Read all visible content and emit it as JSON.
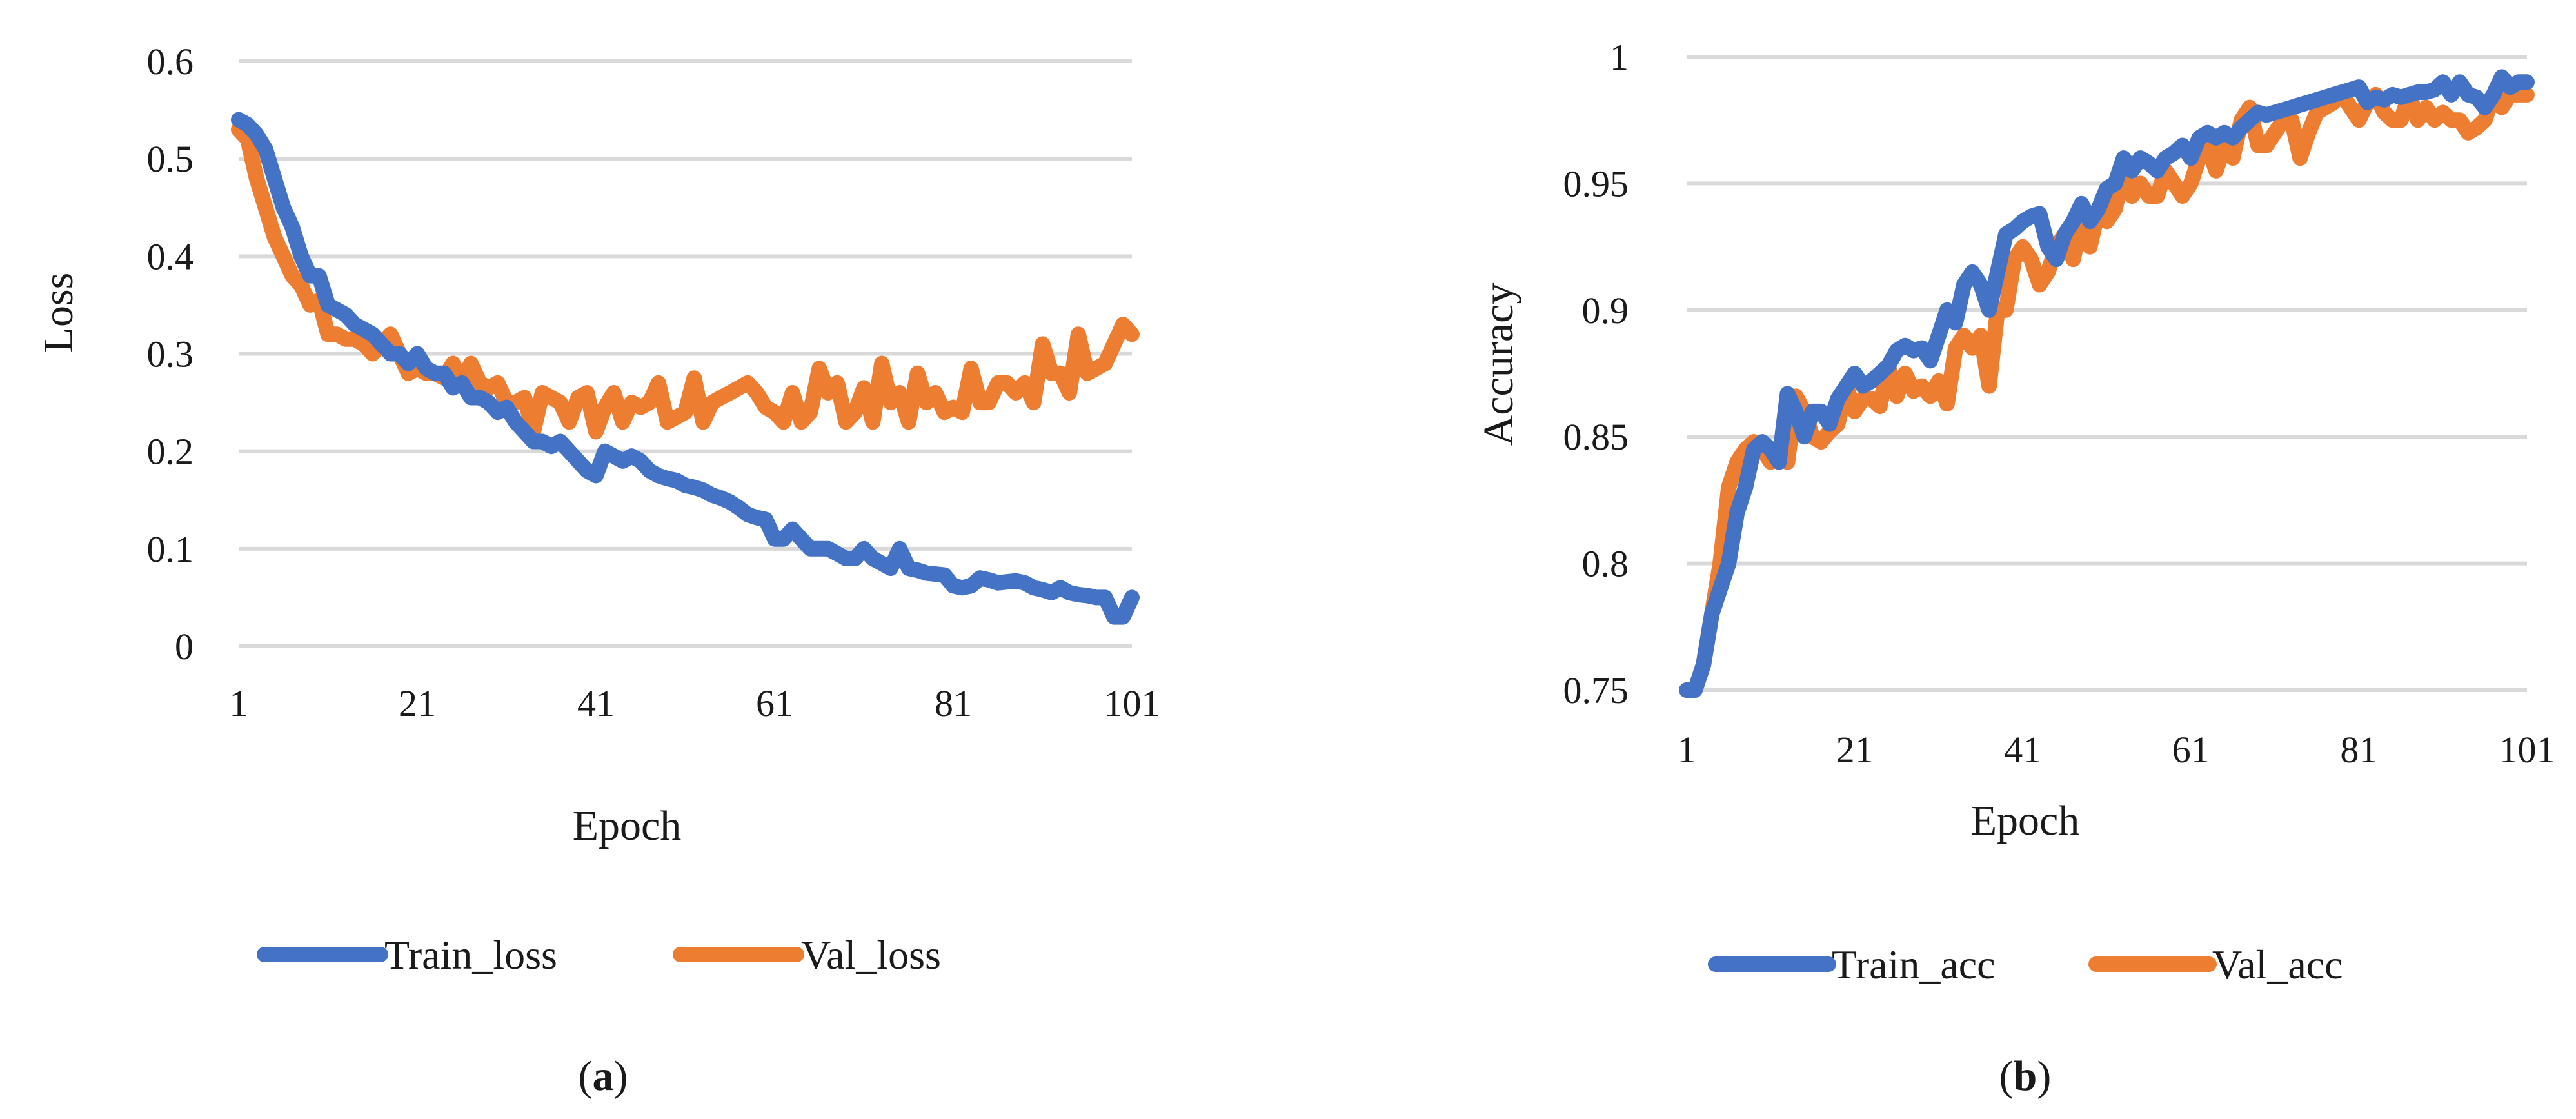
{
  "figure": {
    "captions": [
      {
        "open": "(",
        "letter": "a",
        "close": ")"
      },
      {
        "open": "(",
        "letter": "b",
        "close": ")"
      }
    ]
  },
  "chart_data": [
    {
      "type": "line",
      "ylabel": "Loss",
      "xlabel": "Epoch",
      "x_ticks": [
        1,
        21,
        41,
        61,
        81,
        101
      ],
      "y_ticks": [
        0,
        0.1,
        0.2,
        0.3,
        0.4,
        0.5,
        0.6
      ],
      "y_tick_labels": [
        "0",
        "0.1",
        "0.2",
        "0.3",
        "0.4",
        "0.5",
        "0.6"
      ],
      "xlim": [
        1,
        101
      ],
      "ylim": [
        0,
        0.6
      ],
      "grid": true,
      "legend_position": "bottom",
      "series": [
        {
          "name": "Train_loss",
          "color": "#4472C4",
          "x": [
            1,
            2,
            3,
            4,
            5,
            6,
            7,
            8,
            9,
            10,
            11,
            12,
            13,
            14,
            15,
            16,
            17,
            18,
            19,
            20,
            21,
            22,
            23,
            24,
            25,
            26,
            27,
            28,
            29,
            30,
            31,
            32,
            33,
            34,
            35,
            36,
            37,
            38,
            39,
            40,
            41,
            42,
            43,
            44,
            45,
            46,
            47,
            48,
            49,
            50,
            51,
            52,
            53,
            54,
            55,
            56,
            57,
            58,
            59,
            60,
            61,
            62,
            63,
            64,
            65,
            66,
            67,
            68,
            69,
            70,
            71,
            72,
            73,
            74,
            75,
            76,
            77,
            78,
            79,
            80,
            81,
            82,
            83,
            84,
            85,
            86,
            87,
            88,
            89,
            90,
            91,
            92,
            93,
            94,
            95,
            96,
            97,
            98,
            99,
            100,
            101
          ],
          "values": [
            0.54,
            0.535,
            0.525,
            0.51,
            0.48,
            0.45,
            0.43,
            0.4,
            0.38,
            0.38,
            0.35,
            0.345,
            0.34,
            0.33,
            0.325,
            0.32,
            0.31,
            0.3,
            0.3,
            0.29,
            0.3,
            0.285,
            0.28,
            0.28,
            0.265,
            0.27,
            0.255,
            0.255,
            0.25,
            0.24,
            0.245,
            0.23,
            0.22,
            0.21,
            0.21,
            0.205,
            0.21,
            0.2,
            0.19,
            0.18,
            0.175,
            0.2,
            0.195,
            0.19,
            0.195,
            0.19,
            0.18,
            0.175,
            0.172,
            0.17,
            0.165,
            0.163,
            0.16,
            0.155,
            0.152,
            0.148,
            0.142,
            0.135,
            0.132,
            0.13,
            0.11,
            0.11,
            0.12,
            0.11,
            0.1,
            0.1,
            0.1,
            0.095,
            0.09,
            0.09,
            0.1,
            0.09,
            0.085,
            0.08,
            0.1,
            0.08,
            0.078,
            0.075,
            0.074,
            0.073,
            0.062,
            0.06,
            0.062,
            0.07,
            0.068,
            0.065,
            0.066,
            0.067,
            0.065,
            0.06,
            0.058,
            0.055,
            0.06,
            0.055,
            0.053,
            0.052,
            0.05,
            0.05,
            0.03,
            0.03,
            0.05
          ]
        },
        {
          "name": "Val_loss",
          "color": "#ED7D31",
          "x": [
            1,
            2,
            3,
            4,
            5,
            6,
            7,
            8,
            9,
            10,
            11,
            12,
            13,
            14,
            15,
            16,
            17,
            18,
            19,
            20,
            21,
            22,
            23,
            24,
            25,
            26,
            27,
            28,
            29,
            30,
            31,
            32,
            33,
            34,
            35,
            36,
            37,
            38,
            39,
            40,
            41,
            42,
            43,
            44,
            45,
            46,
            47,
            48,
            49,
            50,
            51,
            52,
            53,
            54,
            55,
            56,
            57,
            58,
            59,
            60,
            61,
            62,
            63,
            64,
            65,
            66,
            67,
            68,
            69,
            70,
            71,
            72,
            73,
            74,
            75,
            76,
            77,
            78,
            79,
            80,
            81,
            82,
            83,
            84,
            85,
            86,
            87,
            88,
            89,
            90,
            91,
            92,
            93,
            94,
            95,
            96,
            97,
            98,
            99,
            100,
            101
          ],
          "values": [
            0.53,
            0.52,
            0.48,
            0.45,
            0.42,
            0.4,
            0.38,
            0.37,
            0.35,
            0.355,
            0.32,
            0.32,
            0.315,
            0.315,
            0.31,
            0.3,
            0.31,
            0.32,
            0.3,
            0.28,
            0.285,
            0.28,
            0.28,
            0.275,
            0.29,
            0.27,
            0.29,
            0.27,
            0.265,
            0.27,
            0.25,
            0.25,
            0.255,
            0.22,
            0.26,
            0.255,
            0.25,
            0.23,
            0.255,
            0.26,
            0.22,
            0.245,
            0.26,
            0.23,
            0.25,
            0.245,
            0.25,
            0.27,
            0.23,
            0.235,
            0.24,
            0.275,
            0.23,
            0.25,
            0.255,
            0.26,
            0.265,
            0.27,
            0.26,
            0.245,
            0.24,
            0.23,
            0.26,
            0.23,
            0.24,
            0.285,
            0.26,
            0.27,
            0.23,
            0.24,
            0.265,
            0.23,
            0.29,
            0.25,
            0.26,
            0.23,
            0.28,
            0.25,
            0.26,
            0.24,
            0.245,
            0.24,
            0.285,
            0.25,
            0.25,
            0.27,
            0.27,
            0.26,
            0.27,
            0.25,
            0.31,
            0.28,
            0.28,
            0.26,
            0.32,
            0.28,
            0.285,
            0.29,
            0.31,
            0.33,
            0.32
          ]
        }
      ]
    },
    {
      "type": "line",
      "ylabel": "Accuracy",
      "xlabel": "Epoch",
      "x_ticks": [
        1,
        21,
        41,
        61,
        81,
        101
      ],
      "y_ticks": [
        0.75,
        0.8,
        0.85,
        0.9,
        0.95,
        1
      ],
      "y_tick_labels": [
        "0.75",
        "0.8",
        "0.85",
        "0.9",
        "0.95",
        "1"
      ],
      "xlim": [
        1,
        101
      ],
      "ylim": [
        0.75,
        1
      ],
      "grid": true,
      "legend_position": "bottom",
      "series": [
        {
          "name": "Train_acc",
          "color": "#4472C4",
          "x": [
            1,
            2,
            3,
            4,
            5,
            6,
            7,
            8,
            9,
            10,
            11,
            12,
            13,
            14,
            15,
            16,
            17,
            18,
            19,
            20,
            21,
            22,
            23,
            24,
            25,
            26,
            27,
            28,
            29,
            30,
            31,
            32,
            33,
            34,
            35,
            36,
            37,
            38,
            39,
            40,
            41,
            42,
            43,
            44,
            45,
            46,
            47,
            48,
            49,
            50,
            51,
            52,
            53,
            54,
            55,
            56,
            57,
            58,
            59,
            60,
            61,
            62,
            63,
            64,
            65,
            66,
            67,
            68,
            69,
            70,
            71,
            72,
            73,
            74,
            75,
            76,
            77,
            78,
            79,
            80,
            81,
            82,
            83,
            84,
            85,
            86,
            87,
            88,
            89,
            90,
            91,
            92,
            93,
            94,
            95,
            96,
            97,
            98,
            99,
            100,
            101
          ],
          "values": [
            0.75,
            0.75,
            0.76,
            0.78,
            0.79,
            0.8,
            0.82,
            0.83,
            0.845,
            0.848,
            0.845,
            0.84,
            0.867,
            0.86,
            0.85,
            0.86,
            0.86,
            0.855,
            0.865,
            0.87,
            0.875,
            0.87,
            0.872,
            0.875,
            0.878,
            0.884,
            0.886,
            0.884,
            0.885,
            0.88,
            0.89,
            0.9,
            0.895,
            0.91,
            0.915,
            0.91,
            0.9,
            0.915,
            0.93,
            0.932,
            0.935,
            0.937,
            0.938,
            0.925,
            0.92,
            0.93,
            0.935,
            0.942,
            0.935,
            0.94,
            0.948,
            0.95,
            0.96,
            0.955,
            0.96,
            0.958,
            0.955,
            0.96,
            0.962,
            0.965,
            0.96,
            0.968,
            0.97,
            0.968,
            0.97,
            0.968,
            0.972,
            0.975,
            0.978,
            0.977,
            0.978,
            0.979,
            0.98,
            0.981,
            0.982,
            0.983,
            0.984,
            0.985,
            0.986,
            0.987,
            0.988,
            0.982,
            0.984,
            0.983,
            0.985,
            0.984,
            0.985,
            0.986,
            0.986,
            0.987,
            0.99,
            0.985,
            0.99,
            0.985,
            0.984,
            0.98,
            0.985,
            0.992,
            0.988,
            0.99,
            0.99
          ]
        },
        {
          "name": "Val_acc",
          "color": "#ED7D31",
          "x": [
            1,
            2,
            3,
            4,
            5,
            6,
            7,
            8,
            9,
            10,
            11,
            12,
            13,
            14,
            15,
            16,
            17,
            18,
            19,
            20,
            21,
            22,
            23,
            24,
            25,
            26,
            27,
            28,
            29,
            30,
            31,
            32,
            33,
            34,
            35,
            36,
            37,
            38,
            39,
            40,
            41,
            42,
            43,
            44,
            45,
            46,
            47,
            48,
            49,
            50,
            51,
            52,
            53,
            54,
            55,
            56,
            57,
            58,
            59,
            60,
            61,
            62,
            63,
            64,
            65,
            66,
            67,
            68,
            69,
            70,
            71,
            72,
            73,
            74,
            75,
            76,
            77,
            78,
            79,
            80,
            81,
            82,
            83,
            84,
            85,
            86,
            87,
            88,
            89,
            90,
            91,
            92,
            93,
            94,
            95,
            96,
            97,
            98,
            99,
            100,
            101
          ],
          "values": [
            0.75,
            0.75,
            0.76,
            0.78,
            0.8,
            0.83,
            0.84,
            0.845,
            0.848,
            0.845,
            0.84,
            0.845,
            0.84,
            0.866,
            0.86,
            0.85,
            0.848,
            0.852,
            0.855,
            0.87,
            0.86,
            0.865,
            0.865,
            0.862,
            0.878,
            0.866,
            0.875,
            0.868,
            0.87,
            0.866,
            0.872,
            0.863,
            0.885,
            0.89,
            0.885,
            0.89,
            0.87,
            0.9,
            0.9,
            0.92,
            0.925,
            0.92,
            0.91,
            0.915,
            0.925,
            0.93,
            0.92,
            0.935,
            0.925,
            0.94,
            0.935,
            0.94,
            0.955,
            0.945,
            0.95,
            0.945,
            0.945,
            0.955,
            0.95,
            0.945,
            0.95,
            0.96,
            0.965,
            0.955,
            0.965,
            0.96,
            0.975,
            0.98,
            0.965,
            0.965,
            0.97,
            0.975,
            0.975,
            0.96,
            0.97,
            0.978,
            0.98,
            0.982,
            0.985,
            0.98,
            0.975,
            0.982,
            0.985,
            0.978,
            0.975,
            0.975,
            0.985,
            0.975,
            0.98,
            0.975,
            0.978,
            0.975,
            0.975,
            0.97,
            0.972,
            0.975,
            0.985,
            0.98,
            0.985,
            0.985,
            0.985
          ]
        }
      ]
    }
  ]
}
